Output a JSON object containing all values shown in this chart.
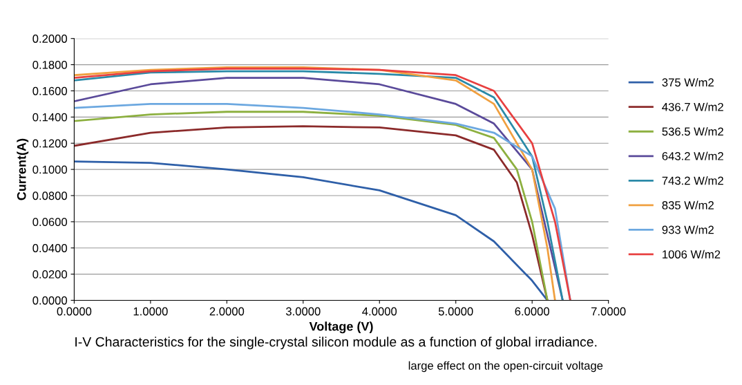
{
  "chart_data": {
    "type": "line",
    "xlabel": "Voltage (V)",
    "ylabel": "Current(A)",
    "xlim": [
      0,
      7
    ],
    "xticks": [
      {
        "value": 0,
        "label": "0.0000"
      },
      {
        "value": 1,
        "label": "1.0000"
      },
      {
        "value": 2,
        "label": "2.0000"
      },
      {
        "value": 3,
        "label": "3.0000"
      },
      {
        "value": 4,
        "label": "4.0000"
      },
      {
        "value": 5,
        "label": "5.0000"
      },
      {
        "value": 6,
        "label": "6.0000"
      },
      {
        "value": 7,
        "label": "7.0000"
      }
    ],
    "ylim": [
      0,
      0.2
    ],
    "yticks": [
      {
        "value": 0,
        "label": "0.0000"
      },
      {
        "value": 0.02,
        "label": "0.0200"
      },
      {
        "value": 0.04,
        "label": "0.0400"
      },
      {
        "value": 0.06,
        "label": "0.0600"
      },
      {
        "value": 0.08,
        "label": "0.0800"
      },
      {
        "value": 0.1,
        "label": "0.1000"
      },
      {
        "value": 0.12,
        "label": "0.1200"
      },
      {
        "value": 0.14,
        "label": "0.1400"
      },
      {
        "value": 0.16,
        "label": "0.1600"
      },
      {
        "value": 0.18,
        "label": "0.1800"
      },
      {
        "value": 0.2,
        "label": "0.2000"
      }
    ],
    "grid": "y",
    "legend": "right",
    "marker": "none",
    "line_style": "solid",
    "annotations": [
      "I-V Characteristics for the single-crystal silicon module as a function of global irradiance.",
      "large effect on the open-circuit voltage"
    ],
    "series": [
      {
        "name": "375 W/m2",
        "color": "#2e5fa8",
        "x": [
          0,
          1,
          2,
          3,
          4,
          5,
          5.5,
          6,
          6.2
        ],
        "values": [
          0.106,
          0.105,
          0.1,
          0.094,
          0.084,
          0.065,
          0.045,
          0.015,
          0
        ]
      },
      {
        "name": "436.7 W/m2",
        "color": "#8b2a2a",
        "x": [
          0,
          1,
          2,
          3,
          4,
          5,
          5.5,
          5.8,
          6,
          6.2
        ],
        "values": [
          0.118,
          0.128,
          0.132,
          0.133,
          0.132,
          0.126,
          0.115,
          0.09,
          0.05,
          0
        ]
      },
      {
        "name": "536.5 W/m2",
        "color": "#8db040",
        "x": [
          0,
          1,
          2,
          3,
          4,
          5,
          5.5,
          5.8,
          6,
          6.2
        ],
        "values": [
          0.137,
          0.142,
          0.144,
          0.144,
          0.141,
          0.134,
          0.124,
          0.1,
          0.06,
          0
        ]
      },
      {
        "name": "643.2 W/m2",
        "color": "#5a4a9a",
        "x": [
          0,
          1,
          2,
          3,
          4,
          5,
          5.5,
          6,
          6.2,
          6.4
        ],
        "values": [
          0.152,
          0.165,
          0.17,
          0.17,
          0.165,
          0.15,
          0.135,
          0.1,
          0.05,
          0
        ]
      },
      {
        "name": "743.2 W/m2",
        "color": "#2a8aa8",
        "x": [
          0,
          1,
          2,
          3,
          4,
          5,
          5.5,
          6,
          6.2,
          6.4
        ],
        "values": [
          0.168,
          0.174,
          0.175,
          0.175,
          0.173,
          0.17,
          0.155,
          0.11,
          0.06,
          0
        ]
      },
      {
        "name": "835 W/m2",
        "color": "#f0a040",
        "x": [
          0,
          1,
          2,
          3,
          4,
          5,
          5.5,
          6,
          6.2,
          6.3
        ],
        "values": [
          0.172,
          0.176,
          0.178,
          0.178,
          0.176,
          0.168,
          0.15,
          0.1,
          0.04,
          0
        ]
      },
      {
        "name": "933 W/m2",
        "color": "#6ca8e0",
        "x": [
          0,
          1,
          2,
          3,
          4,
          5,
          5.5,
          6,
          6.3,
          6.5
        ],
        "values": [
          0.147,
          0.15,
          0.15,
          0.147,
          0.142,
          0.135,
          0.128,
          0.11,
          0.07,
          0
        ]
      },
      {
        "name": "1006 W/m2",
        "color": "#e84040",
        "x": [
          0,
          1,
          2,
          3,
          4,
          5,
          5.5,
          6,
          6.3,
          6.5
        ],
        "values": [
          0.17,
          0.175,
          0.177,
          0.177,
          0.176,
          0.172,
          0.16,
          0.12,
          0.06,
          0
        ]
      }
    ]
  }
}
